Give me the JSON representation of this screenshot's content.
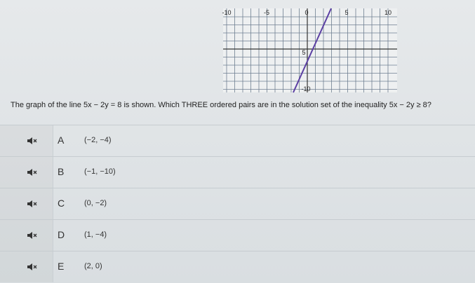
{
  "graph": {
    "x_tick_labels": [
      "-10",
      "-5",
      "0",
      "5",
      "10"
    ],
    "y_tick_labels": [
      "5",
      "-10"
    ]
  },
  "question": "The graph of the line 5x − 2y = 8 is shown. Which THREE ordered pairs are in the solution set of the inequality 5x − 2y ≥ 8?",
  "options": [
    {
      "letter": "A",
      "text": "(−2, −4)"
    },
    {
      "letter": "B",
      "text": "(−1, −10)"
    },
    {
      "letter": "C",
      "text": "(0, −2)"
    },
    {
      "letter": "D",
      "text": "(1, −4)"
    },
    {
      "letter": "E",
      "text": "(2, 0)"
    }
  ]
}
